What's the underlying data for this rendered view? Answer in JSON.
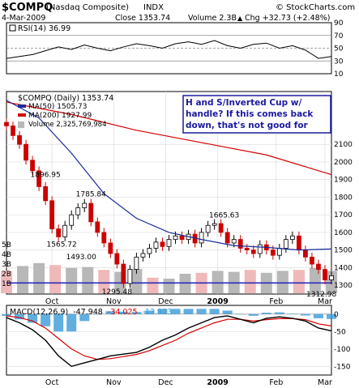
{
  "header": {
    "symbol": "$COMPQ",
    "name": "(Nasdaq Composite)",
    "exchange": "INDX",
    "date": "4-Mar-2009",
    "close_text": "Close 1353.74",
    "volume_text": "Volume 2.3B",
    "change_text": "Chg +32.73 (+2.48%)",
    "change_arrow": "▲",
    "logo": "© StockCharts.com"
  },
  "colors": {
    "price_up": "#000000",
    "price_down": "#cc0000",
    "ma50": "#1a2a9a",
    "ma200": "#d40000",
    "support": "#2b2bb8",
    "vol_up": "#b8b8b8",
    "vol_down": "#efb9b9",
    "macd_line": "#000000",
    "signal_line": "#d40000",
    "histogram": "#3a9ad9",
    "annotation_border": "#1a1aa0",
    "annotation_text": "#1a1aa0"
  },
  "chart_data": [
    {
      "type": "line",
      "panel": "rsi",
      "legend": "RSI(14) 36.99",
      "ylim": [
        10,
        90
      ],
      "y_ticks": [
        10,
        30,
        50,
        70,
        90
      ],
      "guides": [
        30,
        50,
        70
      ],
      "x": [
        0,
        4,
        8,
        12,
        16,
        20,
        24,
        28,
        32,
        36,
        40,
        44,
        48,
        52,
        56,
        60,
        64,
        68,
        72,
        76,
        80,
        84,
        88,
        92,
        96,
        100
      ],
      "values": [
        34,
        37,
        40,
        46,
        52,
        48,
        55,
        50,
        46,
        52,
        57,
        54,
        50,
        57,
        60,
        56,
        62,
        54,
        50,
        56,
        58,
        50,
        54,
        47,
        34,
        37
      ]
    },
    {
      "type": "candlestick",
      "panel": "price",
      "legend": [
        "$COMPQ (Daily) 1353.74",
        "MA(50) 1505.73",
        "MA(200) 1927.99",
        "Volume 2,325,769,984"
      ],
      "ylim": [
        1250,
        2400
      ],
      "y_ticks": [
        1300,
        1400,
        1500,
        1600,
        1700,
        1800,
        1900,
        2000,
        2100
      ],
      "volume_ticks": [
        "5B",
        "4B",
        "3B",
        "2B",
        "1B"
      ],
      "x_ticks": [
        "Oct",
        "Nov",
        "Dec",
        "2009",
        "Feb",
        "Mar"
      ],
      "x_tick_pos": [
        14,
        33,
        49,
        65,
        83,
        98
      ],
      "close_x": [
        0,
        2,
        4,
        6,
        8,
        10,
        12,
        14,
        16,
        18,
        20,
        22,
        24,
        26,
        28,
        30,
        32,
        34,
        36,
        38,
        40,
        42,
        44,
        46,
        48,
        50,
        52,
        54,
        56,
        58,
        60,
        62,
        64,
        66,
        68,
        70,
        72,
        74,
        76,
        78,
        80,
        82,
        84,
        86,
        88,
        90,
        92,
        94,
        96,
        98,
        100
      ],
      "close_values": [
        2205,
        2150,
        2100,
        2010,
        1950,
        1860,
        1780,
        1620,
        1575,
        1640,
        1700,
        1740,
        1765,
        1660,
        1600,
        1540,
        1480,
        1420,
        1310,
        1390,
        1460,
        1480,
        1510,
        1545,
        1520,
        1560,
        1580,
        1560,
        1590,
        1540,
        1600,
        1640,
        1650,
        1600,
        1540,
        1560,
        1510,
        1500,
        1480,
        1530,
        1500,
        1470,
        1510,
        1560,
        1580,
        1500,
        1460,
        1420,
        1390,
        1330,
        1354
      ],
      "ma50_x": [
        0,
        10,
        20,
        30,
        40,
        50,
        60,
        70,
        80,
        90,
        100
      ],
      "ma50_values": [
        2350,
        2250,
        2050,
        1820,
        1680,
        1600,
        1560,
        1525,
        1515,
        1500,
        1506
      ],
      "ma200_x": [
        0,
        20,
        40,
        60,
        80,
        100
      ],
      "ma200_values": [
        2340,
        2270,
        2180,
        2110,
        2040,
        1928
      ],
      "support_level": 1313,
      "volume_x": [
        0,
        5,
        10,
        15,
        20,
        25,
        30,
        35,
        40,
        45,
        50,
        55,
        60,
        65,
        70,
        75,
        80,
        85,
        90,
        95,
        100
      ],
      "volume_values_b": [
        2.3,
        2.8,
        3.1,
        2.9,
        2.6,
        2.7,
        2.4,
        2.2,
        2.5,
        1.6,
        1.5,
        2.0,
        2.1,
        2.3,
        2.2,
        2.4,
        2.1,
        2.3,
        2.4,
        2.6,
        2.3
      ],
      "labels": [
        {
          "text": "1896.95",
          "x": 12,
          "y": 1897
        },
        {
          "text": "1785.84",
          "x": 26,
          "y": 1786
        },
        {
          "text": "1565.72",
          "x": 17,
          "y": 1566
        },
        {
          "text": "1493.00",
          "x": 23,
          "y": 1493
        },
        {
          "text": "1295.48",
          "x": 34,
          "y": 1295
        },
        {
          "text": "1665.63",
          "x": 67,
          "y": 1666
        },
        {
          "text": "1312.98",
          "x": 99,
          "y": 1300
        }
      ],
      "annotation": "H and S/Inverted Cup w/ handle? If this comes back down, that's not good for longs."
    },
    {
      "type": "line",
      "panel": "macd",
      "legend": {
        "prefix": "MACD(12,26,9)",
        "macd": "-47.948",
        "signal": "-34.025",
        "histogram": "-13.923"
      },
      "ylim": [
        -175,
        25
      ],
      "y_ticks": [
        0,
        -50,
        -100,
        -150
      ],
      "x_ticks": [
        "Oct",
        "Nov",
        "Dec",
        "2009",
        "Feb",
        "Mar"
      ],
      "x": [
        0,
        4,
        8,
        12,
        16,
        20,
        24,
        28,
        32,
        36,
        40,
        44,
        48,
        52,
        56,
        60,
        64,
        68,
        72,
        76,
        80,
        84,
        88,
        92,
        96,
        100
      ],
      "macd": [
        -10,
        -25,
        -45,
        -75,
        -120,
        -150,
        -140,
        -130,
        -120,
        -115,
        -110,
        -95,
        -75,
        -60,
        -40,
        -25,
        -10,
        -5,
        -15,
        -25,
        -12,
        -8,
        -12,
        -20,
        -40,
        -48
      ],
      "signal": [
        -5,
        -10,
        -20,
        -40,
        -70,
        -100,
        -120,
        -130,
        -128,
        -122,
        -116,
        -105,
        -90,
        -75,
        -55,
        -40,
        -25,
        -15,
        -15,
        -20,
        -16,
        -13,
        -13,
        -16,
        -28,
        -34
      ],
      "histogram": [
        -5,
        -15,
        -25,
        -35,
        -50,
        -50,
        -20,
        0,
        8,
        7,
        6,
        10,
        15,
        15,
        15,
        15,
        15,
        10,
        0,
        -5,
        4,
        5,
        1,
        -4,
        -12,
        -14
      ]
    }
  ]
}
